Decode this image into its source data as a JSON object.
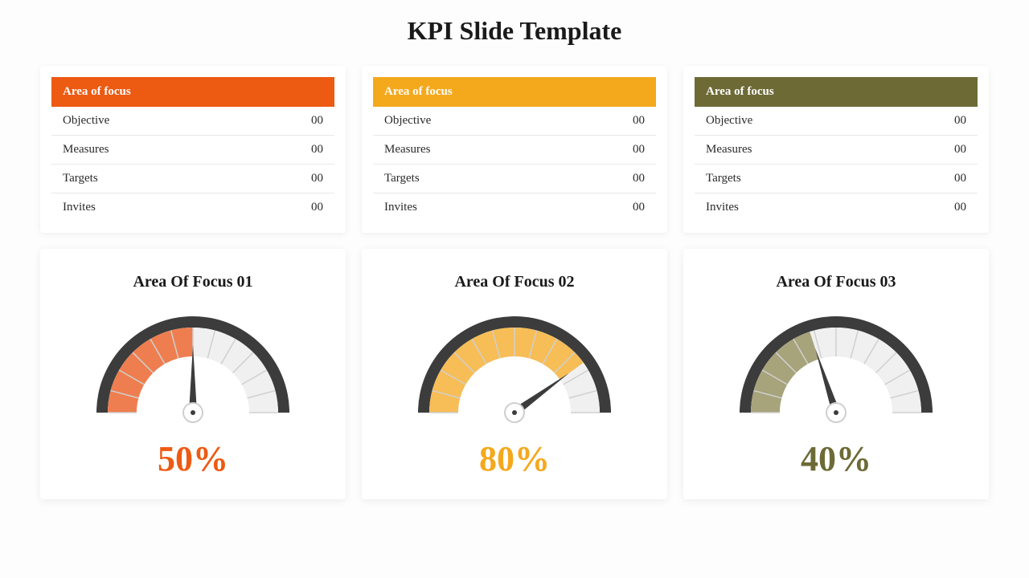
{
  "title": "KPI Slide Template",
  "page_bg": "#fdfdfd",
  "card_bg": "#ffffff",
  "text_color": "#1a1a1a",
  "row_border": "#e8e8e8",
  "title_fontsize": 32,
  "tables": [
    {
      "header": "Area of focus",
      "header_bg": "#ed5a12",
      "header_fg": "#ffffff",
      "rows": [
        {
          "label": "Objective",
          "value": "00"
        },
        {
          "label": "Measures",
          "value": "00"
        },
        {
          "label": "Targets",
          "value": "00"
        },
        {
          "label": "Invites",
          "value": "00"
        }
      ]
    },
    {
      "header": "Area of focus",
      "header_bg": "#f4a91d",
      "header_fg": "#ffffff",
      "rows": [
        {
          "label": "Objective",
          "value": "00"
        },
        {
          "label": "Measures",
          "value": "00"
        },
        {
          "label": "Targets",
          "value": "00"
        },
        {
          "label": "Invites",
          "value": "00"
        }
      ]
    },
    {
      "header": "Area of focus",
      "header_bg": "#6d6a36",
      "header_fg": "#ffffff",
      "rows": [
        {
          "label": "Objective",
          "value": "00"
        },
        {
          "label": "Measures",
          "value": "00"
        },
        {
          "label": "Targets",
          "value": "00"
        },
        {
          "label": "Invites",
          "value": "00"
        }
      ]
    }
  ],
  "gauges": [
    {
      "title": "Area Of Focus 01",
      "percent": 50,
      "value_label": "50%",
      "fill_color": "#ee7e4f",
      "empty_color": "#f0f0f0",
      "ring_color": "#3c3c3c",
      "tick_color": "#d0d0d0",
      "needle_color": "#3c3c3c",
      "hub_fill": "#ffffff",
      "hub_stroke": "#cfcfcf",
      "value_color": "#ed5a12"
    },
    {
      "title": "Area Of Focus 02",
      "percent": 80,
      "value_label": "80%",
      "fill_color": "#f7bd56",
      "empty_color": "#f0f0f0",
      "ring_color": "#3c3c3c",
      "tick_color": "#d0d0d0",
      "needle_color": "#3c3c3c",
      "hub_fill": "#ffffff",
      "hub_stroke": "#cfcfcf",
      "value_color": "#f4a91d"
    },
    {
      "title": "Area Of Focus 03",
      "percent": 40,
      "value_label": "40%",
      "fill_color": "#a7a37a",
      "empty_color": "#f0f0f0",
      "ring_color": "#3c3c3c",
      "tick_color": "#d0d0d0",
      "needle_color": "#3c3c3c",
      "hub_fill": "#ffffff",
      "hub_stroke": "#cfcfcf",
      "value_color": "#6d6a36"
    }
  ],
  "gauge_geom": {
    "outer_r": 120,
    "ring_w": 14,
    "band_outer": 106,
    "band_inner": 70,
    "tick_count": 12,
    "needle_len": 84,
    "hub_r": 12
  }
}
